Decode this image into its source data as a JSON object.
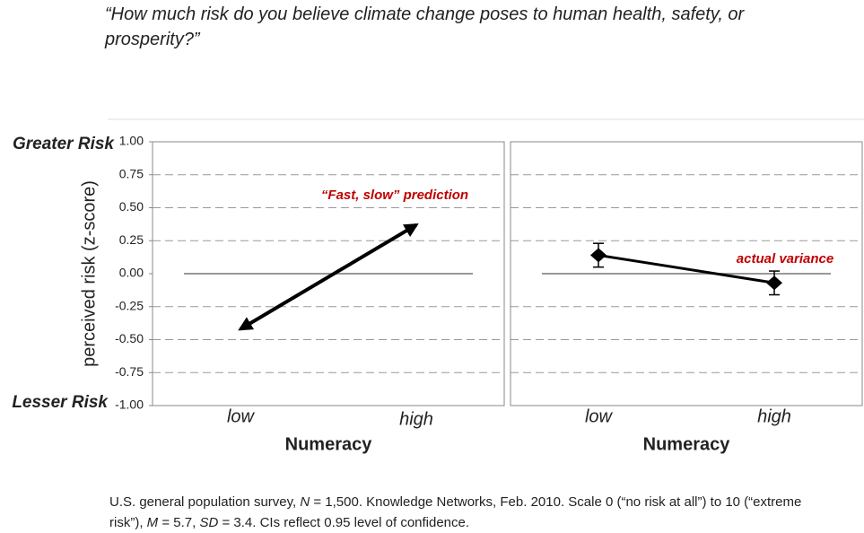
{
  "question": "“How much risk do you believe climate change poses to human health, safety, or prosperity?”",
  "footnote": [
    "U.S. general population survey, ",
    "N",
    " = 1,500. Knowledge Networks, Feb. 2010. Scale 0 (“no risk at all”) to 10 (“extreme risk”), ",
    "M",
    " = 5.7, ",
    "SD",
    " = 3.4. CIs reflect 0.95 level of confidence."
  ],
  "chart_data": [
    {
      "type": "arrow",
      "categories": [
        "low",
        "high"
      ],
      "series": [
        {
          "color": "#000000",
          "values": [
            -0.42,
            0.37
          ]
        }
      ],
      "annotation": "“Fast, slow” prediction",
      "annotation_color": "#c00000",
      "xlabel": "Numeracy",
      "ylabel": "perceived risk (z-score)",
      "top_label": "Greater Risk",
      "bottom_label": "Lesser Risk",
      "ylim": [
        -1,
        1
      ],
      "yticks": [
        {
          "value": -1,
          "label": "-1.00"
        },
        {
          "value": -0.75,
          "label": "-0.75"
        },
        {
          "value": -0.5,
          "label": "-0.50"
        },
        {
          "value": -0.25,
          "label": "-0.25"
        },
        {
          "value": 0,
          "label": "0.00"
        },
        {
          "value": 0.25,
          "label": "0.25"
        },
        {
          "value": 0.5,
          "label": "0.50"
        },
        {
          "value": 0.75,
          "label": "0.75"
        },
        {
          "value": 1,
          "label": "1.00"
        }
      ],
      "grid": true
    },
    {
      "type": "errorbar",
      "categories": [
        "low",
        "high"
      ],
      "series": [
        {
          "color": "#000000",
          "values": [
            0.14,
            -0.07
          ],
          "errors": [
            0.09,
            0.09
          ]
        }
      ],
      "annotation": "actual variance",
      "annotation_color": "#c00000",
      "xlabel": "Numeracy",
      "ylim": [
        -1,
        1
      ],
      "yticks": [
        -1,
        -0.75,
        -0.5,
        -0.25,
        0,
        0.25,
        0.5,
        0.75,
        1
      ],
      "grid": true
    }
  ]
}
